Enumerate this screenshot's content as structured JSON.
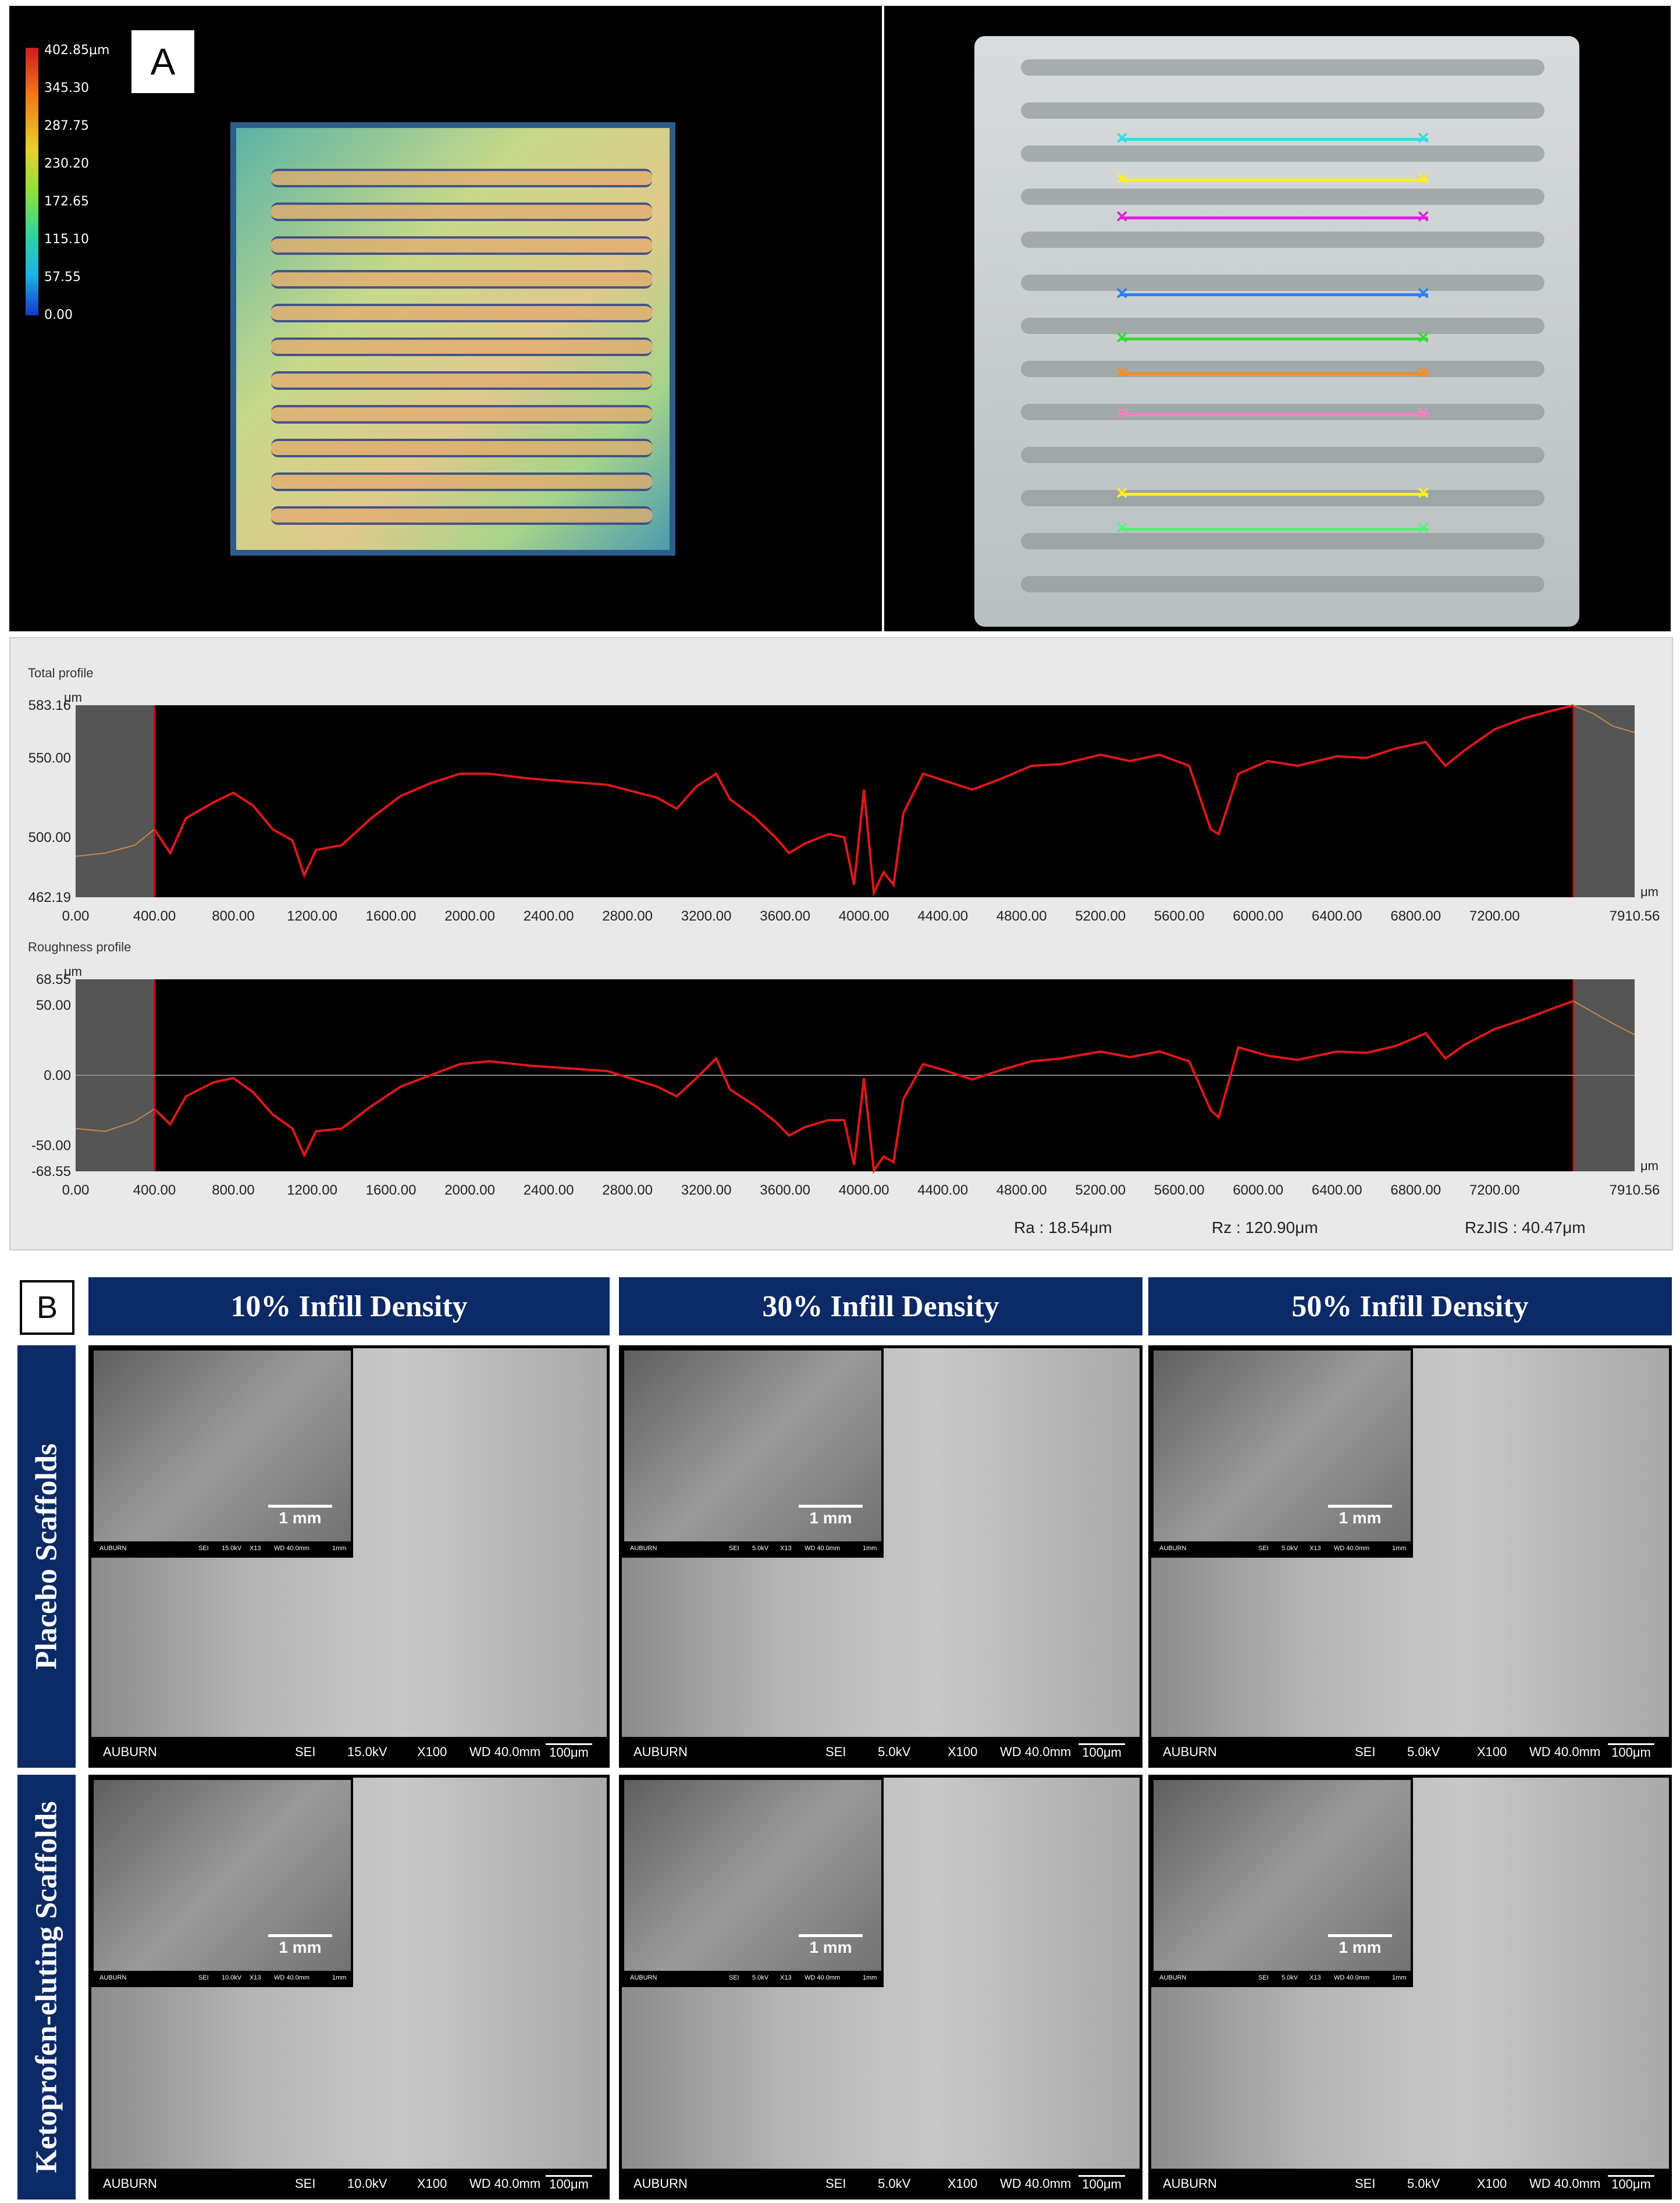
{
  "panel_labels": {
    "a": "A",
    "b": "B"
  },
  "colorbar": {
    "ticks": [
      "402.85μm",
      "345.30",
      "287.75",
      "230.20",
      "172.65",
      "115.10",
      "57.55",
      "0.00"
    ]
  },
  "measure_line_colors": [
    "#2fe0e0",
    "#ffee22",
    "#e020e0",
    "#2a7fff",
    "#2ee02e",
    "#ff8c1a",
    "#ff7fbf",
    "#ffee22",
    "#55f07a"
  ],
  "total_profile": {
    "title": "Total profile",
    "unit": "μm",
    "yticks": [
      "583.16",
      "550.00",
      "500.00",
      "462.19"
    ],
    "xticks": [
      "0.00",
      "400.00",
      "800.00",
      "1200.00",
      "1600.00",
      "2000.00",
      "2400.00",
      "2800.00",
      "3200.00",
      "3600.00",
      "4000.00",
      "4400.00",
      "4800.00",
      "5200.00",
      "5600.00",
      "6000.00",
      "6400.00",
      "6800.00",
      "7200.00",
      "7910.56"
    ],
    "xunit": "μm",
    "line_color": "#e01818",
    "ylim": [
      462.19,
      583.16
    ],
    "xlim": [
      0,
      7910.56
    ],
    "eval_range": [
      400,
      7600
    ],
    "points": [
      [
        0,
        488
      ],
      [
        150,
        490
      ],
      [
        300,
        495
      ],
      [
        400,
        505
      ],
      [
        480,
        490
      ],
      [
        560,
        512
      ],
      [
        700,
        522
      ],
      [
        800,
        528
      ],
      [
        900,
        520
      ],
      [
        1000,
        505
      ],
      [
        1100,
        498
      ],
      [
        1160,
        476
      ],
      [
        1220,
        492
      ],
      [
        1350,
        495
      ],
      [
        1500,
        512
      ],
      [
        1650,
        526
      ],
      [
        1800,
        534
      ],
      [
        1950,
        540
      ],
      [
        2100,
        540
      ],
      [
        2300,
        537
      ],
      [
        2500,
        535
      ],
      [
        2700,
        533
      ],
      [
        2950,
        525
      ],
      [
        3050,
        518
      ],
      [
        3150,
        532
      ],
      [
        3250,
        540
      ],
      [
        3320,
        524
      ],
      [
        3450,
        512
      ],
      [
        3550,
        500
      ],
      [
        3620,
        490
      ],
      [
        3700,
        496
      ],
      [
        3820,
        502
      ],
      [
        3900,
        500
      ],
      [
        3950,
        470
      ],
      [
        4000,
        530
      ],
      [
        4050,
        465
      ],
      [
        4100,
        478
      ],
      [
        4150,
        470
      ],
      [
        4200,
        515
      ],
      [
        4300,
        540
      ],
      [
        4400,
        536
      ],
      [
        4550,
        530
      ],
      [
        4700,
        537
      ],
      [
        4850,
        545
      ],
      [
        5000,
        546
      ],
      [
        5200,
        552
      ],
      [
        5350,
        548
      ],
      [
        5500,
        552
      ],
      [
        5650,
        545
      ],
      [
        5760,
        505
      ],
      [
        5800,
        502
      ],
      [
        5900,
        540
      ],
      [
        6050,
        548
      ],
      [
        6200,
        545
      ],
      [
        6400,
        551
      ],
      [
        6550,
        550
      ],
      [
        6700,
        556
      ],
      [
        6850,
        560
      ],
      [
        6950,
        545
      ],
      [
        7050,
        555
      ],
      [
        7200,
        568
      ],
      [
        7350,
        575
      ],
      [
        7500,
        580
      ],
      [
        7600,
        583
      ],
      [
        7700,
        578
      ],
      [
        7800,
        570
      ],
      [
        7910,
        566
      ]
    ]
  },
  "roughness_profile": {
    "title": "Roughness profile",
    "unit": "μm",
    "yticks": [
      "68.55",
      "50.00",
      "0.00",
      "-50.00",
      "-68.55"
    ],
    "xticks": [
      "0.00",
      "400.00",
      "800.00",
      "1200.00",
      "1600.00",
      "2000.00",
      "2400.00",
      "2800.00",
      "3200.00",
      "3600.00",
      "4000.00",
      "4400.00",
      "4800.00",
      "5200.00",
      "5600.00",
      "6000.00",
      "6400.00",
      "6800.00",
      "7200.00",
      "7910.56"
    ],
    "xunit": "μm",
    "line_color": "#e01818",
    "ylim": [
      -68.55,
      68.55
    ],
    "xlim": [
      0,
      7910.56
    ],
    "eval_range": [
      400,
      7600
    ],
    "points": [
      [
        0,
        -38
      ],
      [
        150,
        -40
      ],
      [
        300,
        -33
      ],
      [
        400,
        -24
      ],
      [
        480,
        -35
      ],
      [
        560,
        -15
      ],
      [
        700,
        -5
      ],
      [
        800,
        -2
      ],
      [
        900,
        -12
      ],
      [
        1000,
        -28
      ],
      [
        1100,
        -38
      ],
      [
        1160,
        -57
      ],
      [
        1220,
        -40
      ],
      [
        1350,
        -38
      ],
      [
        1500,
        -22
      ],
      [
        1650,
        -8
      ],
      [
        1800,
        0
      ],
      [
        1950,
        8
      ],
      [
        2100,
        10
      ],
      [
        2300,
        7
      ],
      [
        2500,
        5
      ],
      [
        2700,
        3
      ],
      [
        2950,
        -8
      ],
      [
        3050,
        -15
      ],
      [
        3150,
        -2
      ],
      [
        3250,
        12
      ],
      [
        3320,
        -10
      ],
      [
        3450,
        -22
      ],
      [
        3550,
        -33
      ],
      [
        3620,
        -43
      ],
      [
        3700,
        -37
      ],
      [
        3820,
        -32
      ],
      [
        3900,
        -32
      ],
      [
        3950,
        -64
      ],
      [
        4000,
        -2
      ],
      [
        4050,
        -68
      ],
      [
        4100,
        -58
      ],
      [
        4150,
        -62
      ],
      [
        4200,
        -17
      ],
      [
        4300,
        8
      ],
      [
        4400,
        4
      ],
      [
        4550,
        -3
      ],
      [
        4700,
        4
      ],
      [
        4850,
        10
      ],
      [
        5000,
        12
      ],
      [
        5200,
        17
      ],
      [
        5350,
        13
      ],
      [
        5500,
        17
      ],
      [
        5650,
        10
      ],
      [
        5760,
        -25
      ],
      [
        5800,
        -30
      ],
      [
        5900,
        20
      ],
      [
        6050,
        14
      ],
      [
        6200,
        11
      ],
      [
        6400,
        17
      ],
      [
        6550,
        16
      ],
      [
        6700,
        21
      ],
      [
        6850,
        30
      ],
      [
        6950,
        12
      ],
      [
        7050,
        22
      ],
      [
        7200,
        33
      ],
      [
        7350,
        40
      ],
      [
        7500,
        48
      ],
      [
        7600,
        53
      ],
      [
        7700,
        45
      ],
      [
        7800,
        37
      ],
      [
        7910,
        29
      ]
    ]
  },
  "roughness_params": {
    "ra": "Ra : 18.54μm",
    "rz": "Rz : 120.90μm",
    "rzjis": "RzJIS : 40.47μm"
  },
  "panel_b": {
    "columns": [
      "10% Infill Density",
      "30% Infill Density",
      "50% Infill Density"
    ],
    "rows": [
      "Placebo Scaffolds",
      "Ketoprofen-eluting Scaffolds"
    ],
    "inset_scale_label": "1 mm",
    "scale_label": "100μm",
    "images": [
      [
        {
          "brand": "AUBURN",
          "mode": "SEI",
          "kv": "15.0kV",
          "mag": "X100",
          "wd": "WD 40.0mm",
          "inset": {
            "brand": "AUBURN",
            "mode": "SEI",
            "kv": "15.0kV",
            "mag": "X13",
            "wd": "WD 40.0mm",
            "scale": "1mm"
          }
        },
        {
          "brand": "AUBURN",
          "mode": "SEI",
          "kv": "5.0kV",
          "mag": "X100",
          "wd": "WD 40.0mm",
          "inset": {
            "brand": "AUBURN",
            "mode": "SEI",
            "kv": "5.0kV",
            "mag": "X13",
            "wd": "WD 40.0mm",
            "scale": "1mm"
          }
        },
        {
          "brand": "AUBURN",
          "mode": "SEI",
          "kv": "5.0kV",
          "mag": "X100",
          "wd": "WD 40.0mm",
          "inset": {
            "brand": "AUBURN",
            "mode": "SEI",
            "kv": "5.0kV",
            "mag": "X13",
            "wd": "WD 40.0mm",
            "scale": "1mm"
          }
        }
      ],
      [
        {
          "brand": "AUBURN",
          "mode": "SEI",
          "kv": "10.0kV",
          "mag": "X100",
          "wd": "WD 40.0mm",
          "inset": {
            "brand": "AUBURN",
            "mode": "SEI",
            "kv": "10.0kV",
            "mag": "X13",
            "wd": "WD 40.0mm",
            "scale": "1mm"
          }
        },
        {
          "brand": "AUBURN",
          "mode": "SEI",
          "kv": "5.0kV",
          "mag": "X100",
          "wd": "WD 40.0mm",
          "inset": {
            "brand": "AUBURN",
            "mode": "SEI",
            "kv": "5.0kV",
            "mag": "X13",
            "wd": "WD 40.0mm",
            "scale": "1mm"
          }
        },
        {
          "brand": "AUBURN",
          "mode": "SEI",
          "kv": "5.0kV",
          "mag": "X100",
          "wd": "WD 40.0mm",
          "inset": {
            "brand": "AUBURN",
            "mode": "SEI",
            "kv": "5.0kV",
            "mag": "X13",
            "wd": "WD 40.0mm",
            "scale": "1mm"
          }
        }
      ]
    ]
  }
}
